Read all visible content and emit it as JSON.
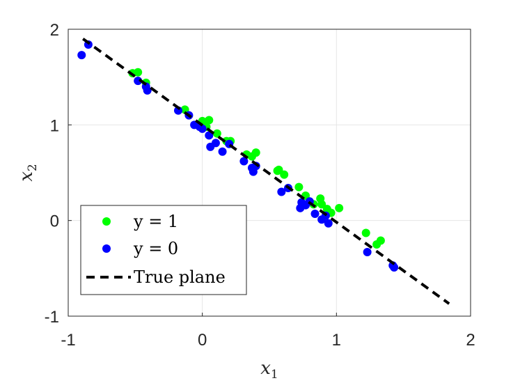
{
  "chart_data": {
    "type": "scatter",
    "title": "",
    "xlabel": "x",
    "xlabel_sub": "1",
    "ylabel": "x",
    "ylabel_sub": "2",
    "xlim": [
      -1,
      2
    ],
    "ylim": [
      -1,
      2
    ],
    "xticks": [
      -1,
      0,
      1,
      2
    ],
    "yticks": [
      -1,
      0,
      1,
      2
    ],
    "xtick_labels": [
      "-1",
      "0",
      "1",
      "2"
    ],
    "ytick_labels": [
      "-1",
      "0",
      "1",
      "2"
    ],
    "grid": true,
    "legend_position": "bottom-left",
    "series": [
      {
        "name": "y = 1",
        "color": "#00ff00",
        "points": [
          [
            -0.52,
            1.54
          ],
          [
            -0.48,
            1.55
          ],
          [
            -0.42,
            1.44
          ],
          [
            -0.13,
            1.16
          ],
          [
            0.0,
            1.04
          ],
          [
            0.05,
            1.05
          ],
          [
            0.03,
            0.98
          ],
          [
            0.11,
            0.91
          ],
          [
            0.18,
            0.83
          ],
          [
            0.21,
            0.83
          ],
          [
            0.33,
            0.69
          ],
          [
            0.37,
            0.67
          ],
          [
            0.4,
            0.71
          ],
          [
            0.56,
            0.52
          ],
          [
            0.57,
            0.53
          ],
          [
            0.61,
            0.48
          ],
          [
            0.72,
            0.35
          ],
          [
            0.77,
            0.26
          ],
          [
            0.83,
            0.17
          ],
          [
            0.88,
            0.23
          ],
          [
            0.89,
            0.17
          ],
          [
            0.93,
            0.12
          ],
          [
            0.96,
            0.08
          ],
          [
            1.02,
            0.13
          ],
          [
            1.22,
            -0.13
          ],
          [
            1.3,
            -0.25
          ],
          [
            1.33,
            -0.21
          ]
        ]
      },
      {
        "name": "y = 0",
        "color": "#0000ff",
        "points": [
          [
            -0.9,
            1.73
          ],
          [
            -0.85,
            1.84
          ],
          [
            -0.48,
            1.46
          ],
          [
            -0.42,
            1.4
          ],
          [
            -0.41,
            1.36
          ],
          [
            -0.18,
            1.15
          ],
          [
            -0.1,
            1.1
          ],
          [
            -0.06,
            1.0
          ],
          [
            -0.02,
            0.98
          ],
          [
            0.0,
            0.96
          ],
          [
            0.05,
            0.89
          ],
          [
            0.06,
            0.77
          ],
          [
            0.1,
            0.81
          ],
          [
            0.15,
            0.72
          ],
          [
            0.2,
            0.8
          ],
          [
            0.31,
            0.62
          ],
          [
            0.37,
            0.55
          ],
          [
            0.38,
            0.51
          ],
          [
            0.4,
            0.57
          ],
          [
            0.59,
            0.3
          ],
          [
            0.64,
            0.34
          ],
          [
            0.73,
            0.13
          ],
          [
            0.74,
            0.19
          ],
          [
            0.77,
            0.16
          ],
          [
            0.8,
            0.2
          ],
          [
            0.84,
            0.07
          ],
          [
            0.89,
            0.01
          ],
          [
            0.92,
            0.05
          ],
          [
            0.94,
            -0.03
          ],
          [
            1.23,
            -0.33
          ],
          [
            1.42,
            -0.47
          ],
          [
            1.43,
            -0.49
          ]
        ]
      }
    ],
    "lines": [
      {
        "name": "True plane",
        "color": "#000000",
        "style": "dashed",
        "points": [
          [
            -0.89,
            1.9
          ],
          [
            1.84,
            -0.87
          ]
        ]
      }
    ]
  }
}
